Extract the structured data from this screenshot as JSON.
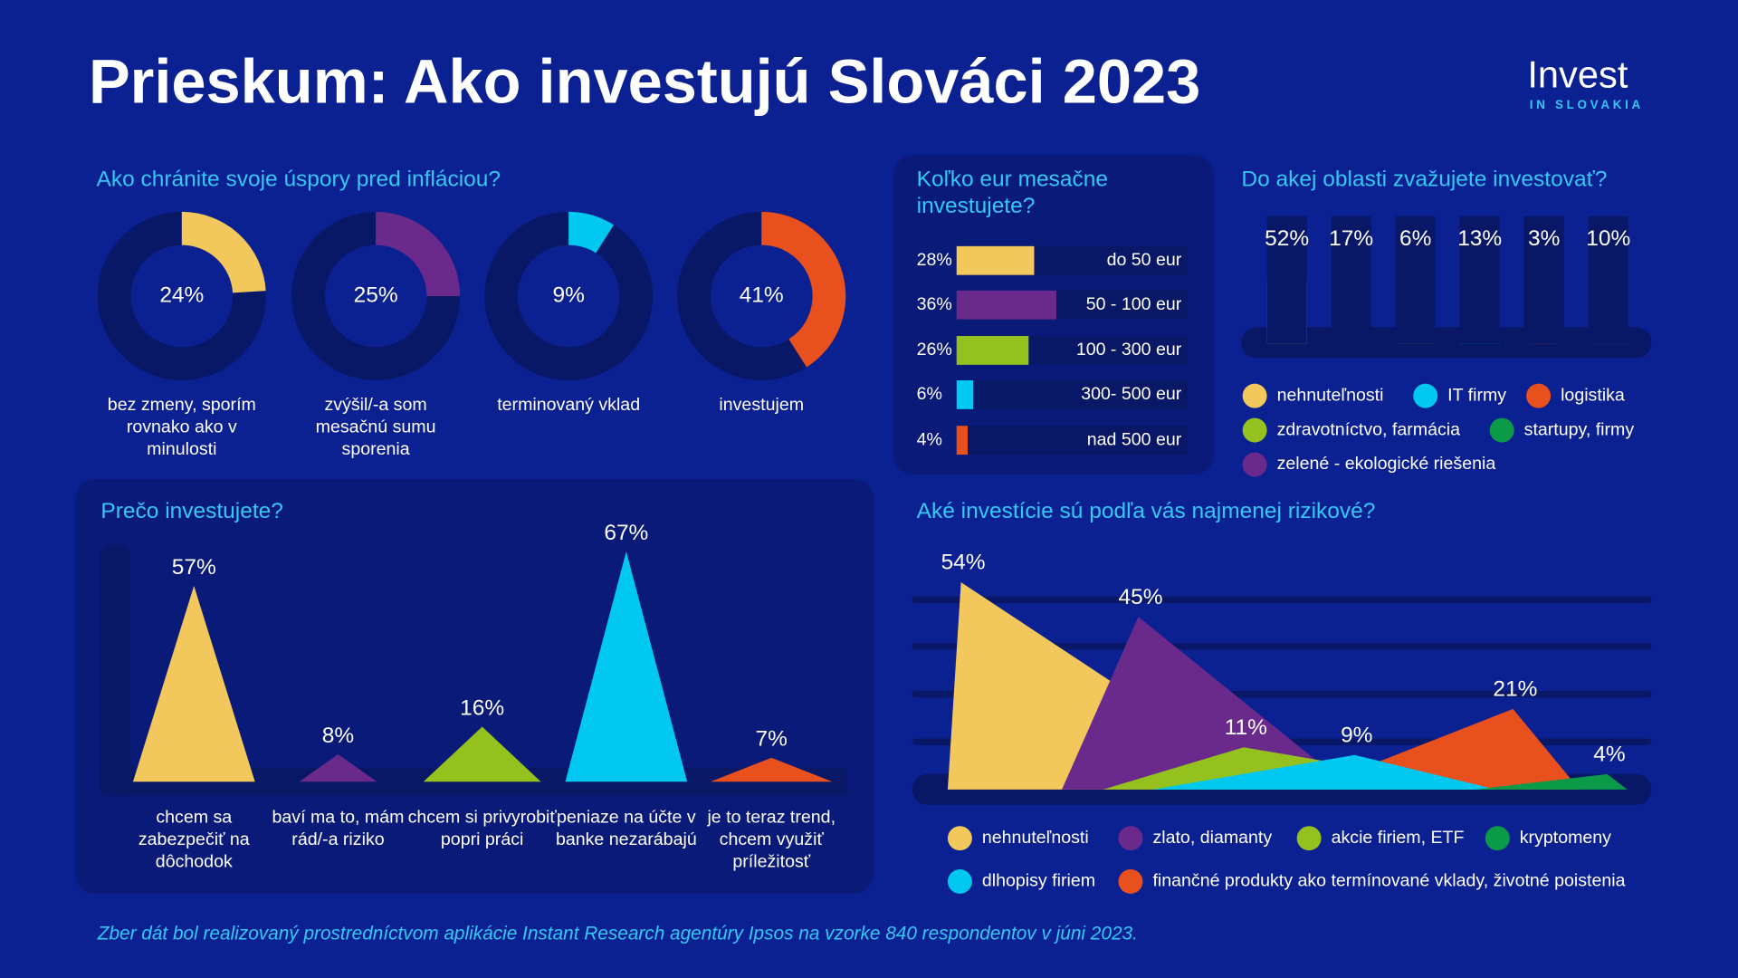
{
  "title": "Prieskum: Ako investujú Slováci 2023",
  "logo": {
    "wordmark": "Invest",
    "tagline": "IN SLOVAKIA"
  },
  "footnote": "Zber dát bol realizovaný prostredníctvom aplikácie Instant Research agentúry Ipsos na vzorke 840 respondentov v júni 2023.",
  "chart_data": [
    {
      "type": "donut",
      "title": "Ako chránite svoje úspory pred infláciou?",
      "categories": [
        "bez zmeny, sporím rovnako ako v minulosti",
        "zvýšil/-a som mesačnú sumu sporenia",
        "terminovaný vklad",
        "investujem"
      ],
      "values": [
        24,
        25,
        9,
        41
      ],
      "value_labels": [
        "24%",
        "25%",
        "9%",
        "41%"
      ],
      "colors": [
        "#f2c75c",
        "#6a2a8c",
        "#00c8f0",
        "#e8501e"
      ]
    },
    {
      "type": "hbar",
      "title": "Koľko eur mesačne investujete?",
      "categories": [
        "do 50 eur",
        "50 - 100 eur",
        "100 - 300 eur",
        "300- 500 eur",
        "nad 500 eur"
      ],
      "values": [
        28,
        36,
        26,
        6,
        4
      ],
      "value_labels": [
        "28%",
        "36%",
        "26%",
        "6%",
        "4%"
      ],
      "colors": [
        "#f2c75c",
        "#6a2a8c",
        "#95c11f",
        "#00c8f0",
        "#e8501e"
      ]
    },
    {
      "type": "column",
      "title": "Do akej oblasti zvažujete investovať?",
      "categories": [
        "nehnuteľnosti",
        "zelené - ekologické riešenia",
        "zdravotníctvo, farmácia",
        "IT firmy",
        "logistika",
        "startupy, firmy"
      ],
      "values": [
        52,
        17,
        6,
        13,
        3,
        10
      ],
      "value_labels": [
        "52%",
        "17%",
        "6%",
        "13%",
        "3%",
        "10%"
      ],
      "colors": [
        "#f2c75c",
        "#6a2a8c",
        "#95c11f",
        "#00c8f0",
        "#e8501e",
        "#0a9a48"
      ]
    },
    {
      "type": "triangle",
      "title": "Prečo investujete?",
      "categories": [
        "chcem sa zabezpečiť na dôchodok",
        "baví ma to, mám rád/-a riziko",
        "chcem si privyrobiť popri práci",
        "peniaze na účte v banke nezarábajú",
        "je to teraz trend, chcem využiť príležitosť"
      ],
      "values": [
        57,
        8,
        16,
        67,
        7
      ],
      "value_labels": [
        "57%",
        "8%",
        "16%",
        "67%",
        "7%"
      ],
      "colors": [
        "#f2c75c",
        "#6a2a8c",
        "#95c11f",
        "#00c8f0",
        "#e8501e"
      ]
    },
    {
      "type": "peaks",
      "title": "Aké investície sú podľa vás najmenej rizikové?",
      "categories": [
        "nehnuteľnosti",
        "zlato, diamanty",
        "akcie firiem, ETF",
        "dlhopisy firiem",
        "finančné produkty ako termínované vklady, životné poistenia",
        "kryptomeny"
      ],
      "values": [
        54,
        45,
        11,
        9,
        21,
        4
      ],
      "value_labels": [
        "54%",
        "45%",
        "11%",
        "9%",
        "21%",
        "4%"
      ],
      "colors": [
        "#f2c75c",
        "#6a2a8c",
        "#95c11f",
        "#00c8f0",
        "#e8501e",
        "#0a9a48"
      ]
    }
  ]
}
